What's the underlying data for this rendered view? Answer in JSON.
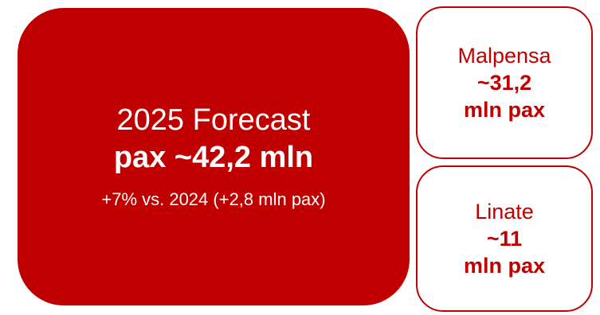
{
  "colors": {
    "primary_red": "#c00000",
    "text_on_red": "#ffffff"
  },
  "main": {
    "title": "2025 Forecast",
    "total": "pax ~42,2 mln",
    "change": "+7% vs. 2024 (+2,8 mln pax)"
  },
  "airports": [
    {
      "name": "Malpensa",
      "value": "~31,2",
      "unit": "mln pax"
    },
    {
      "name": "Linate",
      "value": "~11",
      "unit": "mln pax"
    }
  ]
}
